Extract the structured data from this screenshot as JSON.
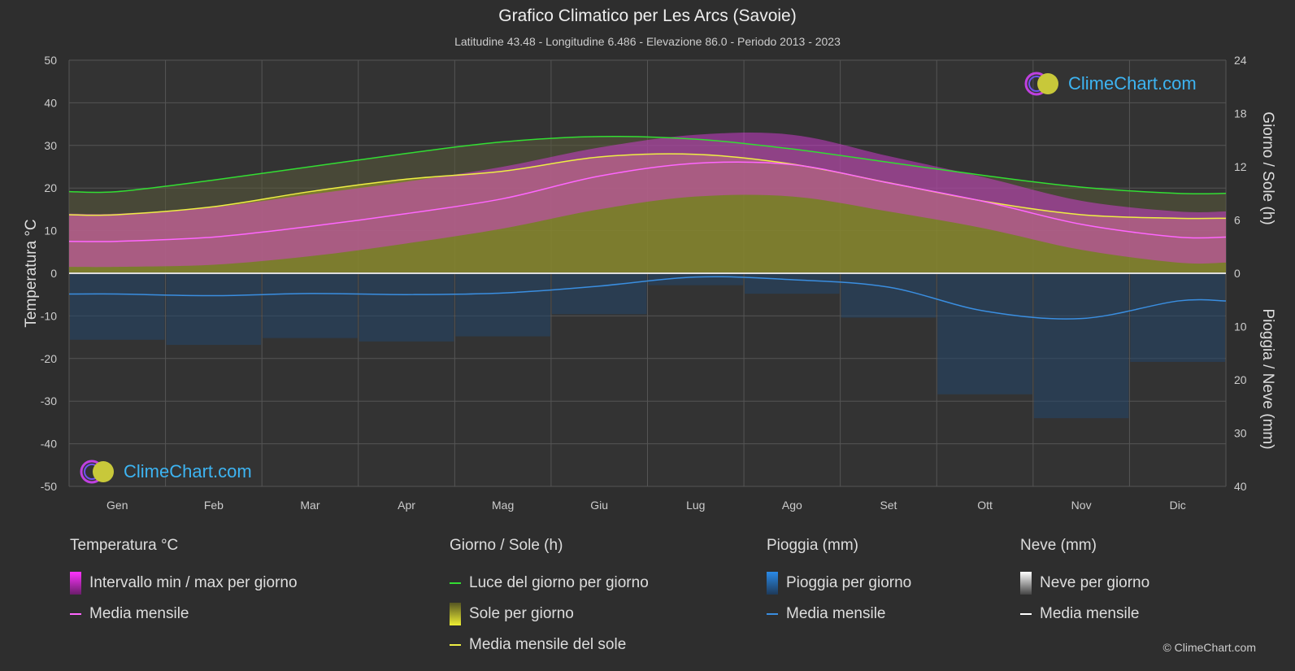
{
  "header": {
    "title": "Grafico Climatico per Les Arcs (Savoie)",
    "subtitle": "Latitudine 43.48 - Longitudine 6.486 - Elevazione 86.0 - Periodo 2013 - 2023"
  },
  "logo": {
    "text": "ClimeChart.com"
  },
  "copyright": "© ClimeChart.com",
  "legend": {
    "temperature": {
      "title": "Temperatura °C",
      "range": "Intervallo min / max per giorno",
      "mean": "Media mensile"
    },
    "sun": {
      "title": "Giorno / Sole (h)",
      "daylight": "Luce del giorno per giorno",
      "sunshine": "Sole per giorno",
      "mean": "Media mensile del sole"
    },
    "rain": {
      "title": "Pioggia (mm)",
      "daily": "Pioggia per giorno",
      "mean": "Media mensile"
    },
    "snow": {
      "title": "Neve (mm)",
      "daily": "Neve per giorno",
      "mean": "Media mensile"
    }
  },
  "colors": {
    "background": "#2e2e2e",
    "temp_range": "#d63bd6",
    "temp_mean": "#ff66ff",
    "daylight": "#33dd33",
    "sunshine": "#b5b52a",
    "sun_mean": "#eeee44",
    "rain": "#2a7fd4",
    "rain_mean": "#3a8ee0",
    "snow_mean": "#ffffff"
  },
  "chart_data": {
    "type": "area",
    "months": [
      "Gen",
      "Feb",
      "Mar",
      "Apr",
      "Mag",
      "Giu",
      "Lug",
      "Ago",
      "Set",
      "Ott",
      "Nov",
      "Dic"
    ],
    "axes": {
      "left": {
        "label": "Temperatura °C",
        "min": -50,
        "max": 50,
        "ticks": [
          50,
          40,
          30,
          20,
          10,
          0,
          -10,
          -20,
          -30,
          -40,
          -50
        ]
      },
      "right_top": {
        "label": "Giorno / Sole (h)",
        "min": 0,
        "max": 24,
        "ticks": [
          24,
          18,
          12,
          6,
          0
        ]
      },
      "right_bottom": {
        "label": "Pioggia / Neve (mm)",
        "min": 0,
        "max": 40,
        "ticks": [
          0,
          10,
          20,
          30,
          40
        ]
      }
    },
    "series": [
      {
        "name": "Media mensile",
        "group": "temperature",
        "values": [
          7.5,
          8.5,
          11.0,
          14.0,
          17.5,
          22.8,
          25.8,
          25.5,
          21.2,
          16.8,
          11.5,
          8.5
        ]
      },
      {
        "name": "Intervallo min / max per giorno (min)",
        "group": "temperature",
        "values": [
          1.5,
          2.0,
          4.0,
          7.0,
          10.5,
          15.0,
          18.0,
          18.0,
          14.5,
          10.5,
          5.5,
          2.5
        ]
      },
      {
        "name": "Intervallo min / max per giorno (max)",
        "group": "temperature",
        "values": [
          14.0,
          15.5,
          18.5,
          21.5,
          25.0,
          29.5,
          32.5,
          32.5,
          27.5,
          22.5,
          17.0,
          14.5
        ]
      },
      {
        "name": "Luce del giorno per giorno",
        "group": "sun",
        "values": [
          9.2,
          10.5,
          12.0,
          13.5,
          14.8,
          15.4,
          15.1,
          14.0,
          12.5,
          11.0,
          9.7,
          9.0
        ]
      },
      {
        "name": "Media mensile del sole",
        "group": "sun",
        "values": [
          6.6,
          7.5,
          9.2,
          10.6,
          11.5,
          13.1,
          13.4,
          12.3,
          10.2,
          8.1,
          6.6,
          6.2
        ]
      },
      {
        "name": "Pioggia media mensile",
        "group": "rain",
        "values": [
          3.9,
          4.2,
          3.8,
          4.0,
          3.7,
          2.4,
          0.7,
          1.2,
          2.6,
          7.1,
          8.5,
          5.2
        ]
      }
    ]
  }
}
